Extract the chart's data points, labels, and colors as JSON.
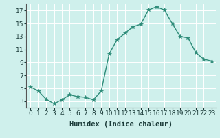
{
  "x": [
    0,
    1,
    2,
    3,
    4,
    5,
    6,
    7,
    8,
    9,
    10,
    11,
    12,
    13,
    14,
    15,
    16,
    17,
    18,
    19,
    20,
    21,
    22,
    23
  ],
  "y": [
    5.2,
    4.6,
    3.3,
    2.6,
    3.2,
    4.0,
    3.7,
    3.6,
    3.2,
    4.6,
    10.3,
    12.5,
    13.5,
    14.5,
    14.9,
    17.1,
    17.6,
    17.1,
    15.0,
    13.0,
    12.8,
    10.5,
    9.5,
    9.2
  ],
  "line_color": "#2d8b78",
  "marker": "*",
  "marker_size": 4,
  "bg_color": "#cff0ec",
  "grid_color": "#ffffff",
  "xlabel": "Humidex (Indice chaleur)",
  "xlim": [
    -0.5,
    23.5
  ],
  "ylim": [
    2.0,
    18.0
  ],
  "yticks": [
    3,
    5,
    7,
    9,
    11,
    13,
    15,
    17
  ],
  "xticks": [
    0,
    1,
    2,
    3,
    4,
    5,
    6,
    7,
    8,
    9,
    10,
    11,
    12,
    13,
    14,
    15,
    16,
    17,
    18,
    19,
    20,
    21,
    22,
    23
  ],
  "tick_label_fontsize": 6.5,
  "xlabel_fontsize": 7.5,
  "line_width": 1.0
}
